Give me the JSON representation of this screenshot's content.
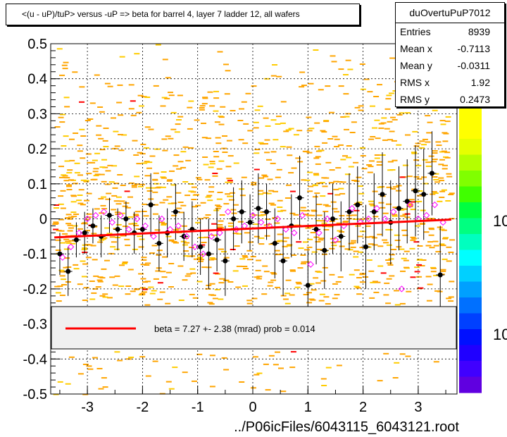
{
  "title": "<(u - uP)/tuP> versus  -uP => beta for barrel 4, layer 7 ladder 12, all wafers",
  "stats": {
    "name": "duOvertuPuP7012",
    "rows": [
      {
        "label": "Entries",
        "value": "8939"
      },
      {
        "label": "Mean x",
        "value": "-0.7113"
      },
      {
        "label": "Mean y",
        "value": "-0.0311"
      },
      {
        "label": "RMS x",
        "value": "1.92"
      },
      {
        "label": "RMS y",
        "value": "0.2473"
      }
    ]
  },
  "fit_legend": "beta =    7.27 +-  2.38 (mrad) prob = 0.014",
  "colorbar_labels": [
    "10",
    "10"
  ],
  "colors": {
    "fit_line": "#ff0000",
    "profile_marker": "#000000",
    "open_marker": "#ff00ff",
    "scatter_fill": "#ffa500"
  },
  "chart_data": {
    "type": "scatter",
    "xlabel": "../P06icFiles/6043115_6043121.root",
    "ylabel": "",
    "xlim": [
      -3.7,
      3.7
    ],
    "ylim": [
      -0.5,
      0.5
    ],
    "xticks": [
      "-3",
      "-2",
      "-1",
      "0",
      "1",
      "2",
      "3"
    ],
    "yticks": [
      "-0.5",
      "-0.4",
      "-0.3",
      "-0.2",
      "-0.1",
      "0",
      "0.1",
      "0.2",
      "0.3",
      "0.4",
      "0.5"
    ],
    "grid": true,
    "fit_line": {
      "x": [
        -3.6,
        3.6
      ],
      "y": [
        -0.053,
        -0.002
      ]
    },
    "series": [
      {
        "marker": "filled-circle",
        "x": [
          -3.5,
          -3.35,
          -3.2,
          -3.05,
          -2.9,
          -2.75,
          -2.6,
          -2.45,
          -2.3,
          -2.15,
          -2.0,
          -1.85,
          -1.7,
          -1.55,
          -1.4,
          -1.25,
          -1.1,
          -0.95,
          -0.8,
          -0.65,
          -0.5,
          -0.35,
          -0.2,
          -0.05,
          0.1,
          0.25,
          0.4,
          0.55,
          0.7,
          0.85,
          1.0,
          1.15,
          1.3,
          1.45,
          1.6,
          1.75,
          1.9,
          2.05,
          2.2,
          2.35,
          2.5,
          2.65,
          2.8,
          2.95,
          3.1,
          3.25,
          3.4
        ],
        "y": [
          -0.1,
          -0.15,
          -0.06,
          -0.04,
          -0.02,
          -0.05,
          0.01,
          -0.03,
          0.0,
          -0.04,
          -0.03,
          0.04,
          -0.07,
          -0.04,
          0.02,
          -0.05,
          -0.03,
          -0.08,
          -0.1,
          -0.06,
          -0.12,
          0.0,
          0.02,
          -0.01,
          0.03,
          0.02,
          -0.07,
          -0.12,
          -0.02,
          0.06,
          -0.19,
          -0.03,
          -0.09,
          0.0,
          -0.05,
          0.02,
          0.04,
          -0.08,
          0.02,
          0.07,
          -0.01,
          0.03,
          0.05,
          0.08,
          0.07,
          0.13,
          -0.16
        ],
        "err": [
          0.06,
          0.07,
          0.05,
          0.06,
          0.05,
          0.06,
          0.05,
          0.06,
          0.05,
          0.06,
          0.06,
          0.09,
          0.08,
          0.07,
          0.08,
          0.07,
          0.08,
          0.08,
          0.1,
          0.09,
          0.1,
          0.09,
          0.09,
          0.08,
          0.1,
          0.08,
          0.1,
          0.1,
          0.09,
          0.12,
          0.1,
          0.1,
          0.11,
          0.1,
          0.1,
          0.11,
          0.11,
          0.12,
          0.11,
          0.12,
          0.12,
          0.12,
          0.12,
          0.13,
          0.13,
          0.12,
          0.14
        ]
      },
      {
        "marker": "open-diamond",
        "x": [
          -3.45,
          -3.3,
          -3.15,
          -3.0,
          -2.85,
          -2.7,
          -2.55,
          -2.4,
          -2.25,
          -2.1,
          -1.95,
          -1.8,
          -1.65,
          -1.5,
          -1.35,
          -1.2,
          -1.05,
          -0.9,
          -0.75,
          -0.6,
          -0.45,
          -0.3,
          -0.15,
          0.0,
          0.15,
          0.3,
          0.45,
          0.6,
          0.75,
          0.9,
          1.05,
          1.2,
          1.35,
          1.5,
          1.65,
          1.8,
          1.95,
          2.1,
          2.25,
          2.4,
          2.55,
          2.7,
          2.85,
          3.0,
          3.15,
          3.3,
          3.45
        ],
        "y": [
          -0.11,
          -0.08,
          -0.04,
          0.0,
          0.01,
          0.02,
          -0.01,
          0.01,
          -0.03,
          0.0,
          -0.02,
          -0.05,
          0.0,
          -0.03,
          -0.02,
          -0.05,
          -0.08,
          -0.1,
          -0.05,
          -0.04,
          0.02,
          -0.03,
          -0.02,
          0.01,
          -0.01,
          -0.02,
          0.0,
          -0.03,
          -0.04,
          0.01,
          -0.13,
          -0.04,
          0.0,
          -0.06,
          -0.02,
          0.03,
          -0.01,
          0.0,
          0.03,
          0.0,
          0.02,
          -0.2,
          0.04,
          0.0,
          0.01,
          0.04,
          -0.01
        ]
      }
    ]
  }
}
